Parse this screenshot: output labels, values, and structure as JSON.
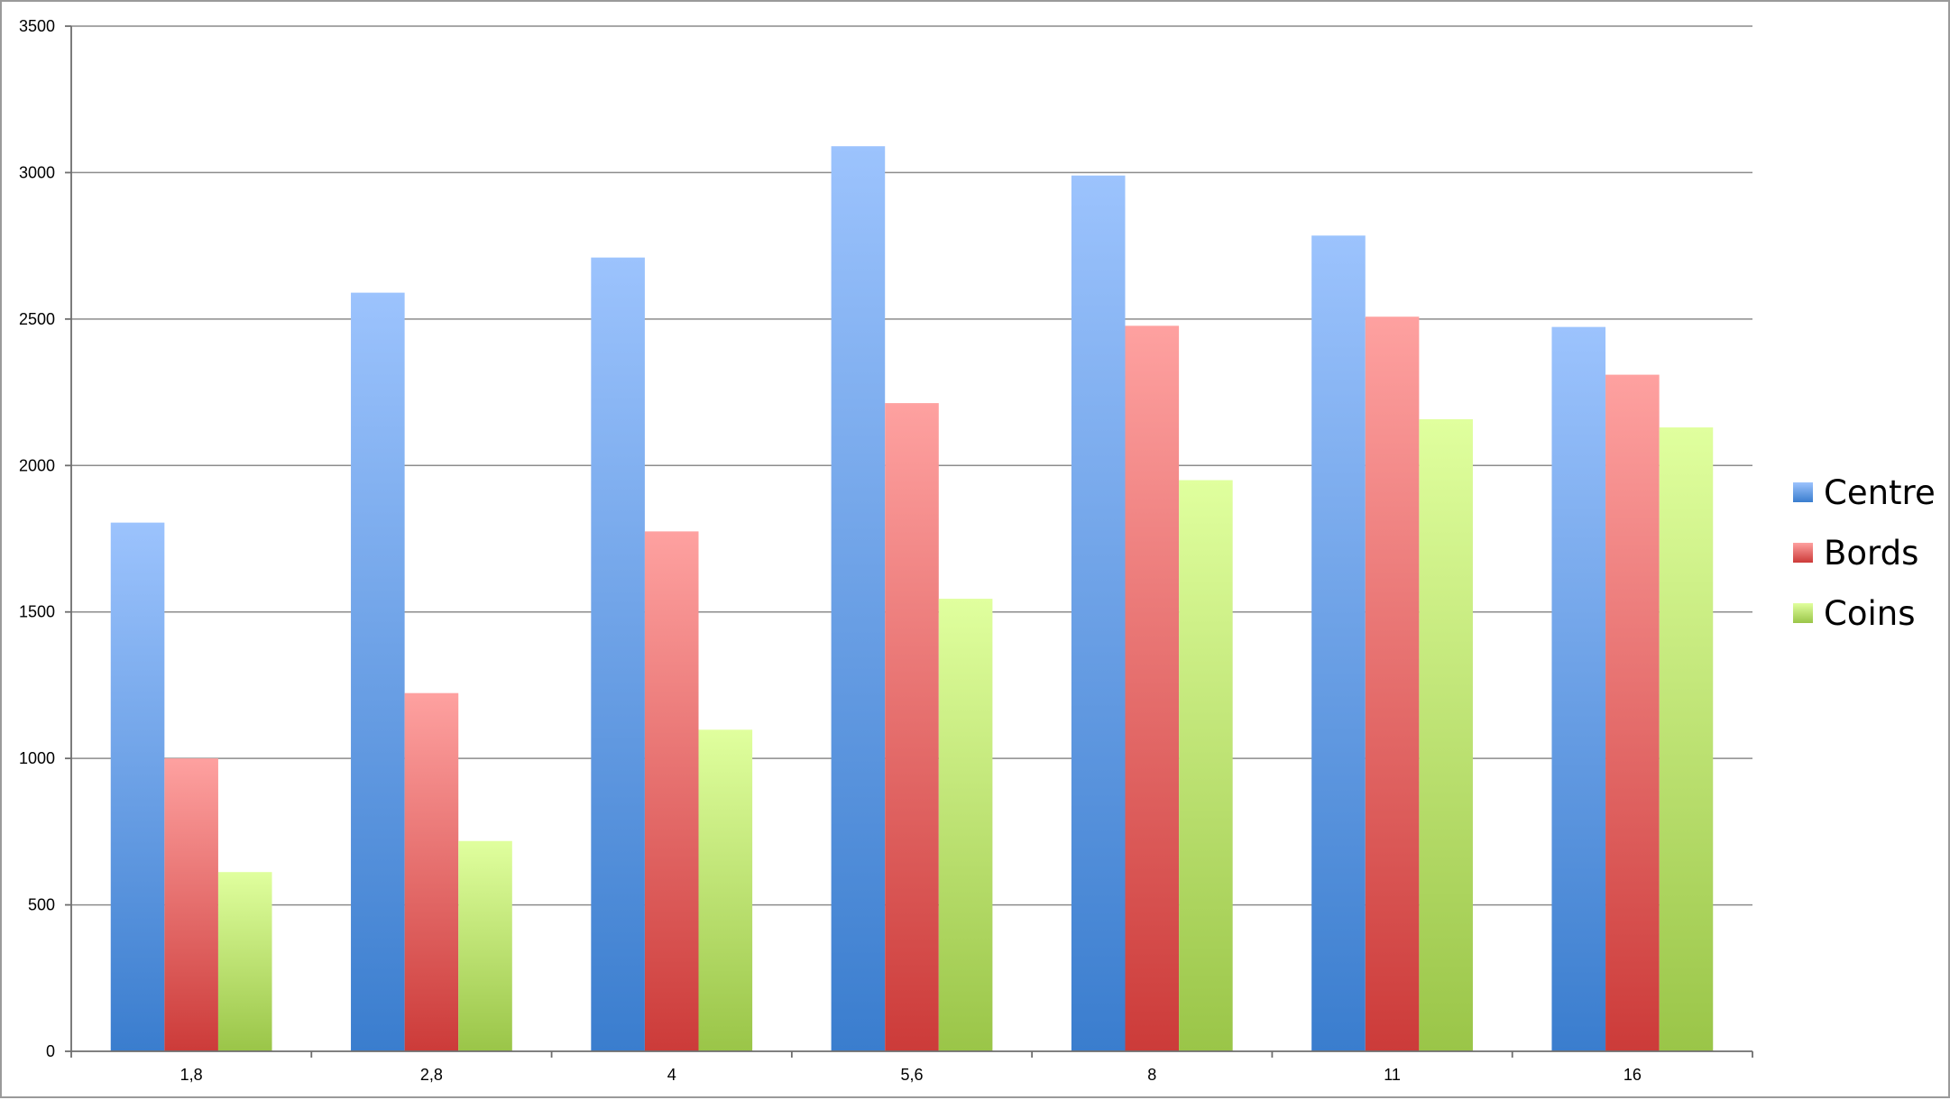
{
  "chart_data": {
    "type": "bar",
    "categories": [
      "1,8",
      "2,8",
      "4",
      "5,6",
      "8",
      "11",
      "16"
    ],
    "series": [
      {
        "name": "Centre",
        "values": [
          1805,
          2590,
          2710,
          3090,
          2990,
          2785,
          2473
        ],
        "color_top": "#9cc3fd",
        "color_bottom": "#3a7dce"
      },
      {
        "name": "Bords",
        "values": [
          1000,
          1223,
          1775,
          2213,
          2477,
          2508,
          2310
        ],
        "color_top": "#fea1a0",
        "color_bottom": "#cc3b39"
      },
      {
        "name": "Coins",
        "values": [
          612,
          718,
          1098,
          1545,
          1950,
          2158,
          2130
        ],
        "color_top": "#e0ff9e",
        "color_bottom": "#9ac548"
      }
    ],
    "y_ticks": [
      "0",
      "500",
      "1000",
      "1500",
      "2000",
      "2500",
      "3000",
      "3500"
    ],
    "ylim": [
      0,
      3500
    ],
    "title": "",
    "xlabel": "",
    "ylabel": "",
    "grid": true,
    "legend": "right"
  }
}
